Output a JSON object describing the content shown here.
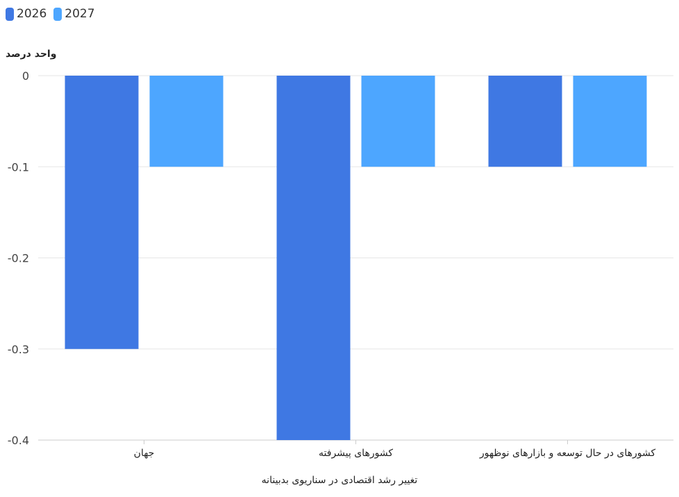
{
  "chart_data": {
    "type": "bar",
    "ylabel": "واحد درصد",
    "xlabel": "تغییر رشد اقتصادی در سناریوی بدبینانه",
    "categories": [
      "جهان",
      "کشورهای پیشرفته",
      "کشورهای در حال توسعه و بازارهای نوظهور"
    ],
    "series": [
      {
        "name": "2026",
        "color": "#3f78e3",
        "values": [
          -0.3,
          -0.4,
          -0.1
        ]
      },
      {
        "name": "2027",
        "color": "#4da6ff",
        "values": [
          -0.1,
          -0.1,
          -0.1
        ]
      }
    ],
    "ylim": [
      -0.4,
      0
    ],
    "yticks": [
      0,
      -0.1,
      -0.2,
      -0.3,
      -0.4
    ],
    "ytick_labels": [
      "0",
      "-0.1",
      "-0.2",
      "-0.3",
      "-0.4"
    ],
    "grid": true,
    "legend": "top-left"
  }
}
